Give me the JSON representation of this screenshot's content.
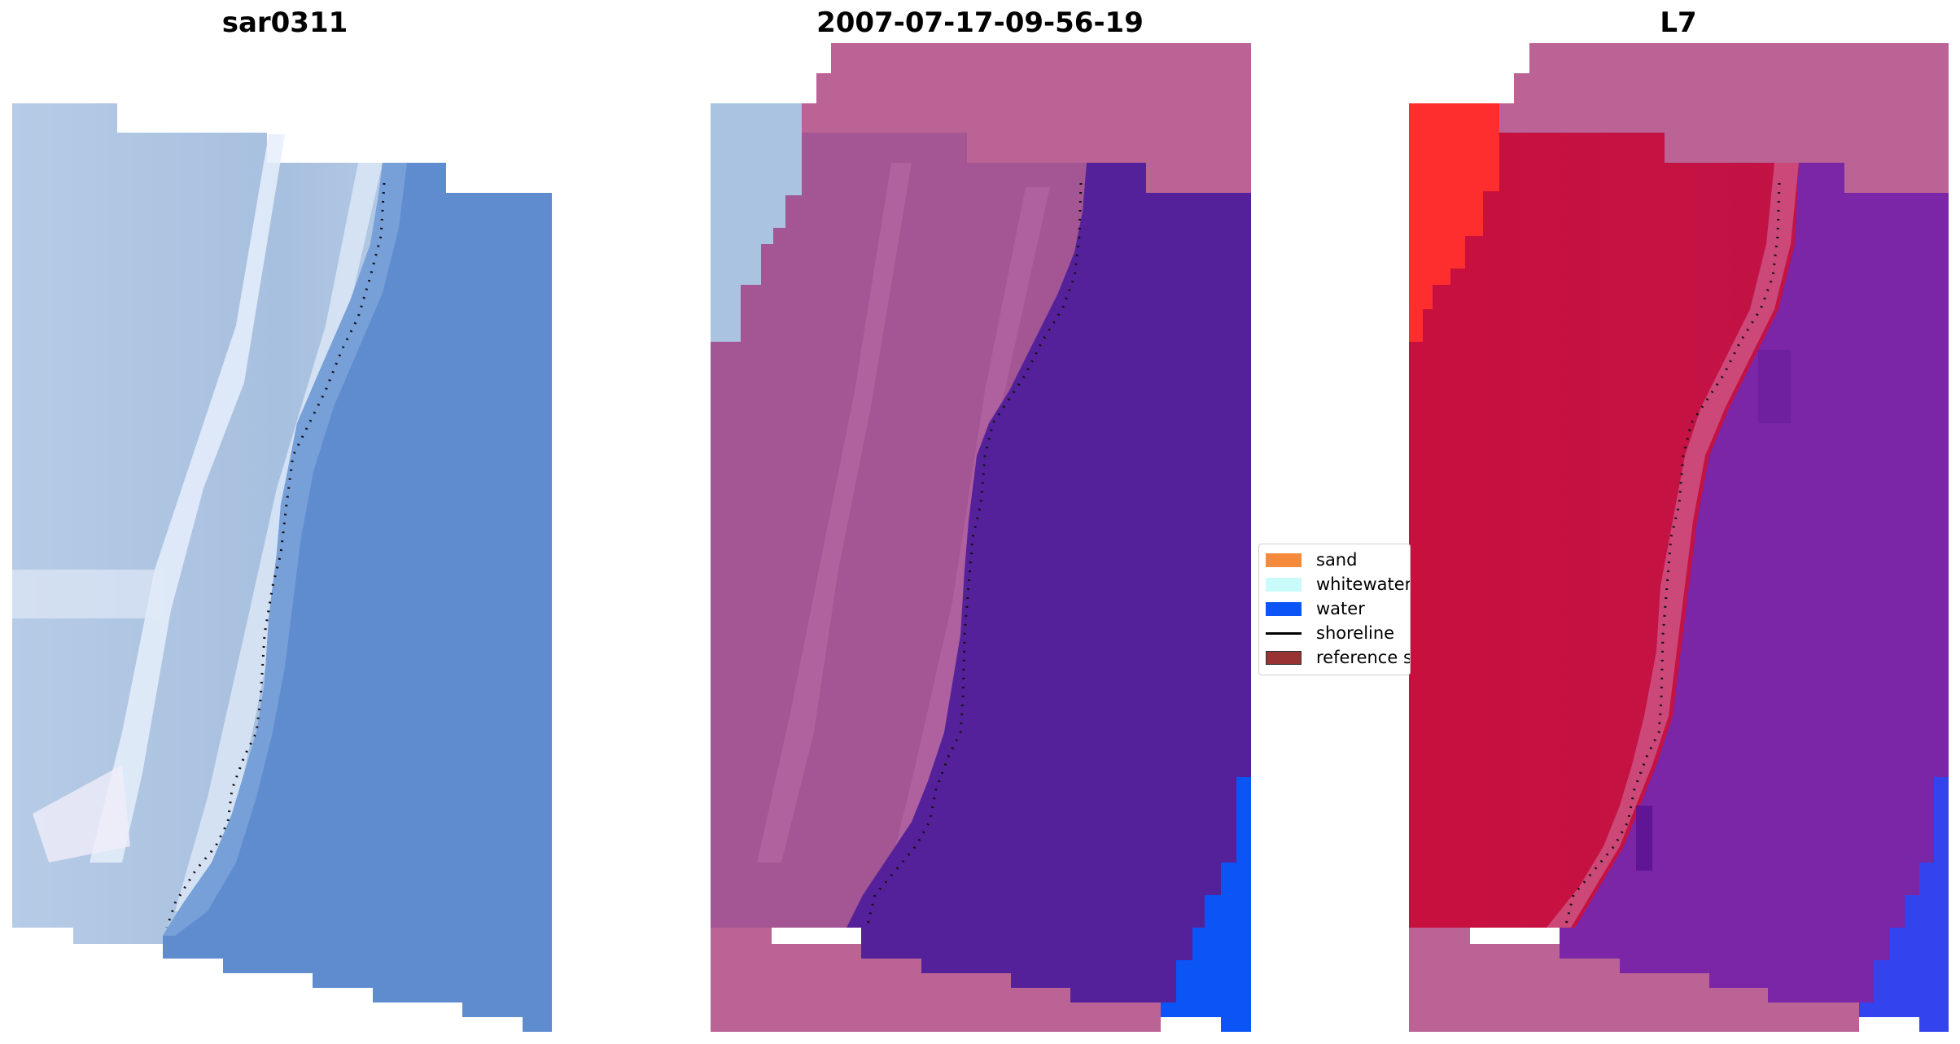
{
  "panels": [
    {
      "title": "sar0311"
    },
    {
      "title": "2007-07-17-09-56-19"
    },
    {
      "title": "L7"
    }
  ],
  "legend": {
    "items": [
      {
        "label": "sand",
        "color": "#f58a3c",
        "kind": "patch"
      },
      {
        "label": "whitewater",
        "color": "#c9fbfa",
        "kind": "patch"
      },
      {
        "label": "water",
        "color": "#0b54f5",
        "kind": "patch"
      },
      {
        "label": "shoreline",
        "color": "#000000",
        "kind": "line"
      },
      {
        "label": "reference s",
        "color": "#993333",
        "kind": "patch"
      }
    ]
  },
  "colors": {
    "rgb_land": "#a9c3e0",
    "rgb_sea": "#5f8ccf",
    "class_land": "#a35594",
    "class_sea": "#55219a",
    "class_mask": "#bb6395",
    "class_water": "#0b54f5",
    "mndwi_land": "#c3123f",
    "mndwi_sea": "#7a26a6",
    "mndwi_bright": "#ff2e2e",
    "mndwi_water": "#3344ee"
  }
}
